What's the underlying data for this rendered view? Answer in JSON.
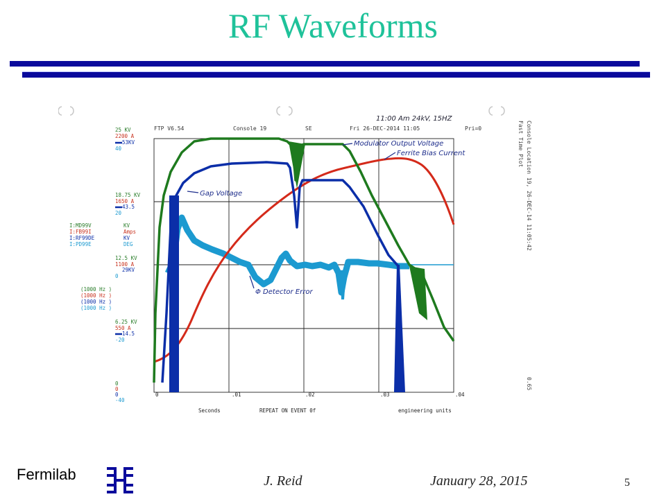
{
  "slide": {
    "title": "RF Waveforms",
    "footer_org": "Fermilab",
    "author": "J. Reid",
    "date": "January 28, 2015",
    "page_number": "5"
  },
  "plot": {
    "header": {
      "program": "FTP V6.54",
      "console": "Console 19",
      "node": "SE",
      "datetime": "Fri 26-DEC-2014 11:05",
      "priority": "Pri=0"
    },
    "side_text": "Console Location 19, 26-DEC-14 11:05:42",
    "side_text2": "Fast Time Plot",
    "side_value": "0.65",
    "handwritten_header": "11:00 Am 24kV, 15HZ",
    "y_labels": {
      "top": [
        "25 KV",
        "2200 A",
        "53KV",
        "40"
      ],
      "row2": [
        "18.75 KV",
        "1650 A",
        "43.5",
        "20"
      ],
      "row3": [
        "12.5 KV",
        "1100 A",
        "29KV",
        "0"
      ],
      "row4": [
        "6.25 KV",
        "550 A",
        "14.5",
        "-20"
      ],
      "bottom": [
        "0",
        "0",
        "0",
        "-40"
      ]
    },
    "legend": [
      {
        "name": "I:MD99V",
        "unit": "KV",
        "color": "#1e7a1e"
      },
      {
        "name": "I:FB99I",
        "unit": "Amps",
        "color": "#d42a1a"
      },
      {
        "name": "I:RF99DE",
        "unit": "KV",
        "color": "#0b2ea8"
      },
      {
        "name": "I:PD99E",
        "unit": "DEG",
        "color": "#1c9ad0"
      }
    ],
    "rates": [
      "(1000 Hz )",
      "(1000 Hz )",
      "(1000 Hz )",
      "(1000 Hz )"
    ],
    "x_ticks": [
      "0",
      ".01",
      ".02",
      ".03",
      ".04"
    ],
    "x_title": "Seconds",
    "x_event": "REPEAT ON EVENT 0f",
    "x_units": "engineering units",
    "annotations": {
      "modulator": "Modulator Output Voltage",
      "ferrite": "Ferrite Bias Current",
      "gap": "Gap Voltage",
      "detector": "Φ Detector Error"
    }
  }
}
